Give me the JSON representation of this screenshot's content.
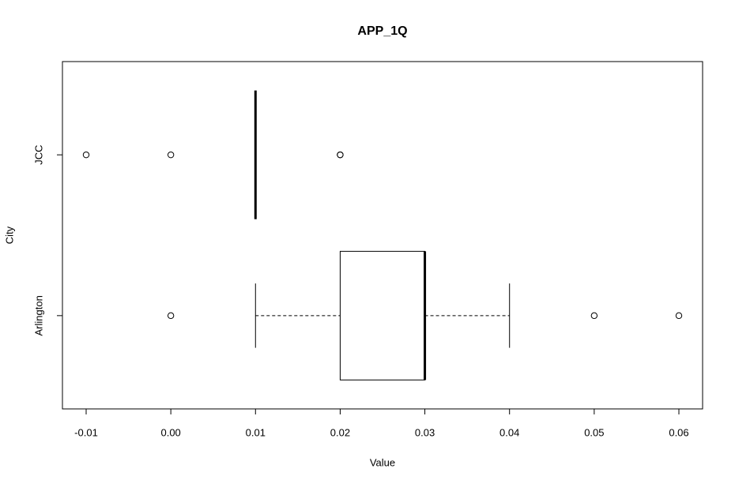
{
  "chart_data": {
    "type": "boxplot",
    "title": "APP_1Q",
    "x_label": "Value",
    "y_label": "City",
    "orientation": "horizontal",
    "categories": [
      "Arlington",
      "JCC"
    ],
    "whisker_low": [
      0.01,
      0.01
    ],
    "q1": [
      0.02,
      0.01
    ],
    "median": [
      0.03,
      0.01
    ],
    "q3": [
      0.03,
      0.01
    ],
    "whisker_high": [
      0.04,
      0.01
    ],
    "outliers": [
      [
        0.0,
        0.05,
        0.06
      ],
      [
        -0.01,
        0.0,
        0.02,
        0.02
      ]
    ],
    "color": "#000000",
    "xlim": [
      -0.0128,
      0.0628
    ],
    "xticks": [
      -0.01,
      {
        "value": 0,
        "label": "0.00"
      },
      0.01,
      0.02,
      0.03,
      0.04,
      0.05,
      0.06
    ]
  }
}
